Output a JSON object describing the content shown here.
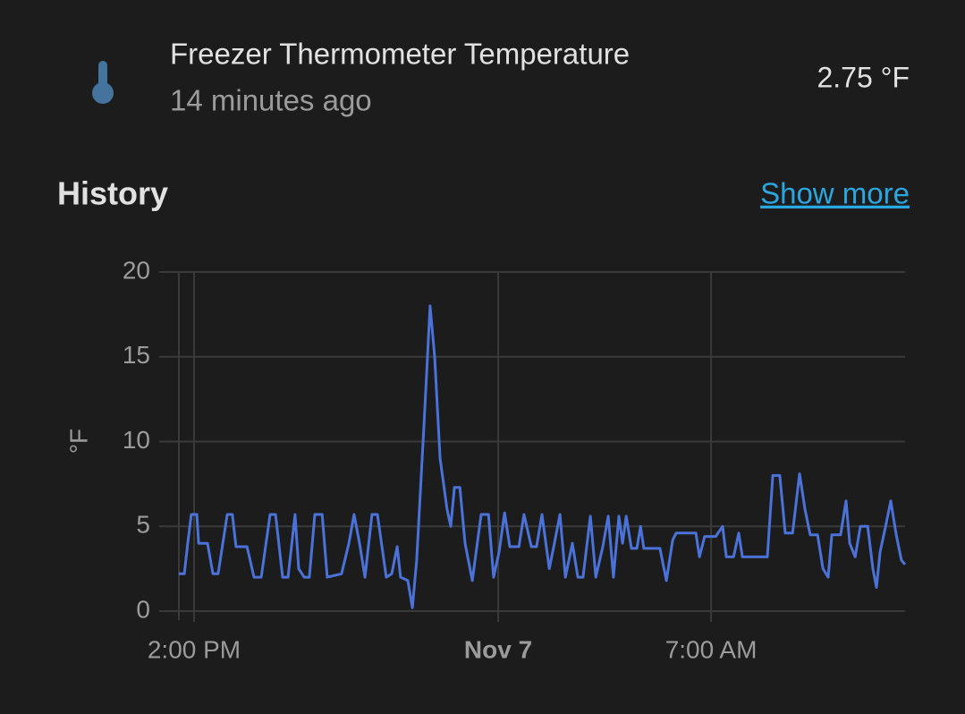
{
  "header": {
    "title": "Freezer Thermometer Temperature",
    "subtitle": "14 minutes ago",
    "state": "2.75 °F"
  },
  "history": {
    "heading": "History",
    "link": "Show more"
  },
  "chart_data": {
    "type": "line",
    "y_label": "°F",
    "color": "#4a72d8",
    "grid": true,
    "xlim": [
      13.5,
      37.38
    ],
    "ylim": [
      0,
      20
    ],
    "yticks": [
      0,
      5,
      10,
      15,
      20
    ],
    "xticks": [
      {
        "value": 14,
        "label": "2:00 PM"
      },
      {
        "value": 24,
        "label": "Nov 7"
      },
      {
        "value": 31,
        "label": "7:00 AM"
      }
    ],
    "x": [
      13.5,
      13.68,
      13.79,
      13.91,
      14.09,
      14.15,
      14.44,
      14.62,
      14.79,
      15.09,
      15.26,
      15.38,
      15.74,
      15.97,
      16.21,
      16.5,
      16.68,
      16.91,
      17.09,
      17.32,
      17.44,
      17.62,
      17.79,
      17.97,
      18.21,
      18.38,
      18.85,
      19.09,
      19.26,
      19.44,
      19.62,
      19.85,
      20.03,
      20.32,
      20.5,
      20.68,
      20.79,
      21.03,
      21.18,
      21.32,
      21.56,
      21.76,
      21.91,
      22.09,
      22.32,
      22.44,
      22.56,
      22.74,
      22.91,
      23.15,
      23.44,
      23.68,
      23.85,
      24.03,
      24.21,
      24.38,
      24.68,
      24.85,
      25.09,
      25.26,
      25.44,
      25.68,
      25.85,
      26.03,
      26.21,
      26.44,
      26.62,
      26.79,
      27.03,
      27.21,
      27.44,
      27.62,
      27.79,
      27.97,
      28.09,
      28.21,
      28.38,
      28.56,
      28.68,
      28.79,
      29.32,
      29.53,
      29.74,
      29.85,
      30.5,
      30.62,
      30.79,
      31.15,
      31.38,
      31.5,
      31.74,
      31.91,
      32.03,
      32.85,
      33.03,
      33.26,
      33.44,
      33.68,
      33.91,
      34.09,
      34.26,
      34.5,
      34.68,
      34.85,
      34.97,
      35.26,
      35.44,
      35.56,
      35.74,
      35.91,
      36.15,
      36.32,
      36.44,
      36.56,
      36.74,
      36.91,
      37.09,
      37.26,
      37.38
    ],
    "values": [
      2.2,
      2.2,
      4,
      5.7,
      5.7,
      4,
      4,
      2.2,
      2.2,
      5.7,
      5.7,
      3.8,
      3.8,
      2,
      2,
      5.7,
      5.7,
      2,
      2,
      5.7,
      2.5,
      2,
      2,
      5.7,
      5.7,
      2,
      2.2,
      4,
      5.7,
      4,
      2,
      5.7,
      5.7,
      2,
      2.2,
      3.8,
      2,
      1.8,
      0.2,
      3,
      11,
      18,
      15,
      9,
      6,
      5,
      7.3,
      7.3,
      4,
      1.8,
      5.7,
      5.7,
      2,
      3.5,
      5.8,
      3.8,
      3.8,
      5.7,
      3.8,
      3.8,
      5.7,
      2.5,
      4,
      5.7,
      2,
      4,
      2,
      2,
      5.6,
      2,
      3.8,
      5.6,
      2,
      5.6,
      4,
      5.6,
      3.7,
      3.7,
      5,
      3.7,
      3.7,
      1.8,
      4.2,
      4.6,
      4.6,
      3.2,
      4.4,
      4.4,
      5,
      3.2,
      3.2,
      4.6,
      3.2,
      3.2,
      8,
      8,
      4.6,
      4.6,
      8.1,
      6,
      4.5,
      4.5,
      2.5,
      2,
      4.5,
      4.5,
      6.5,
      4,
      3.2,
      5,
      5,
      2.5,
      1.4,
      3.5,
      5,
      6.5,
      4.5,
      3,
      2.75
    ]
  }
}
